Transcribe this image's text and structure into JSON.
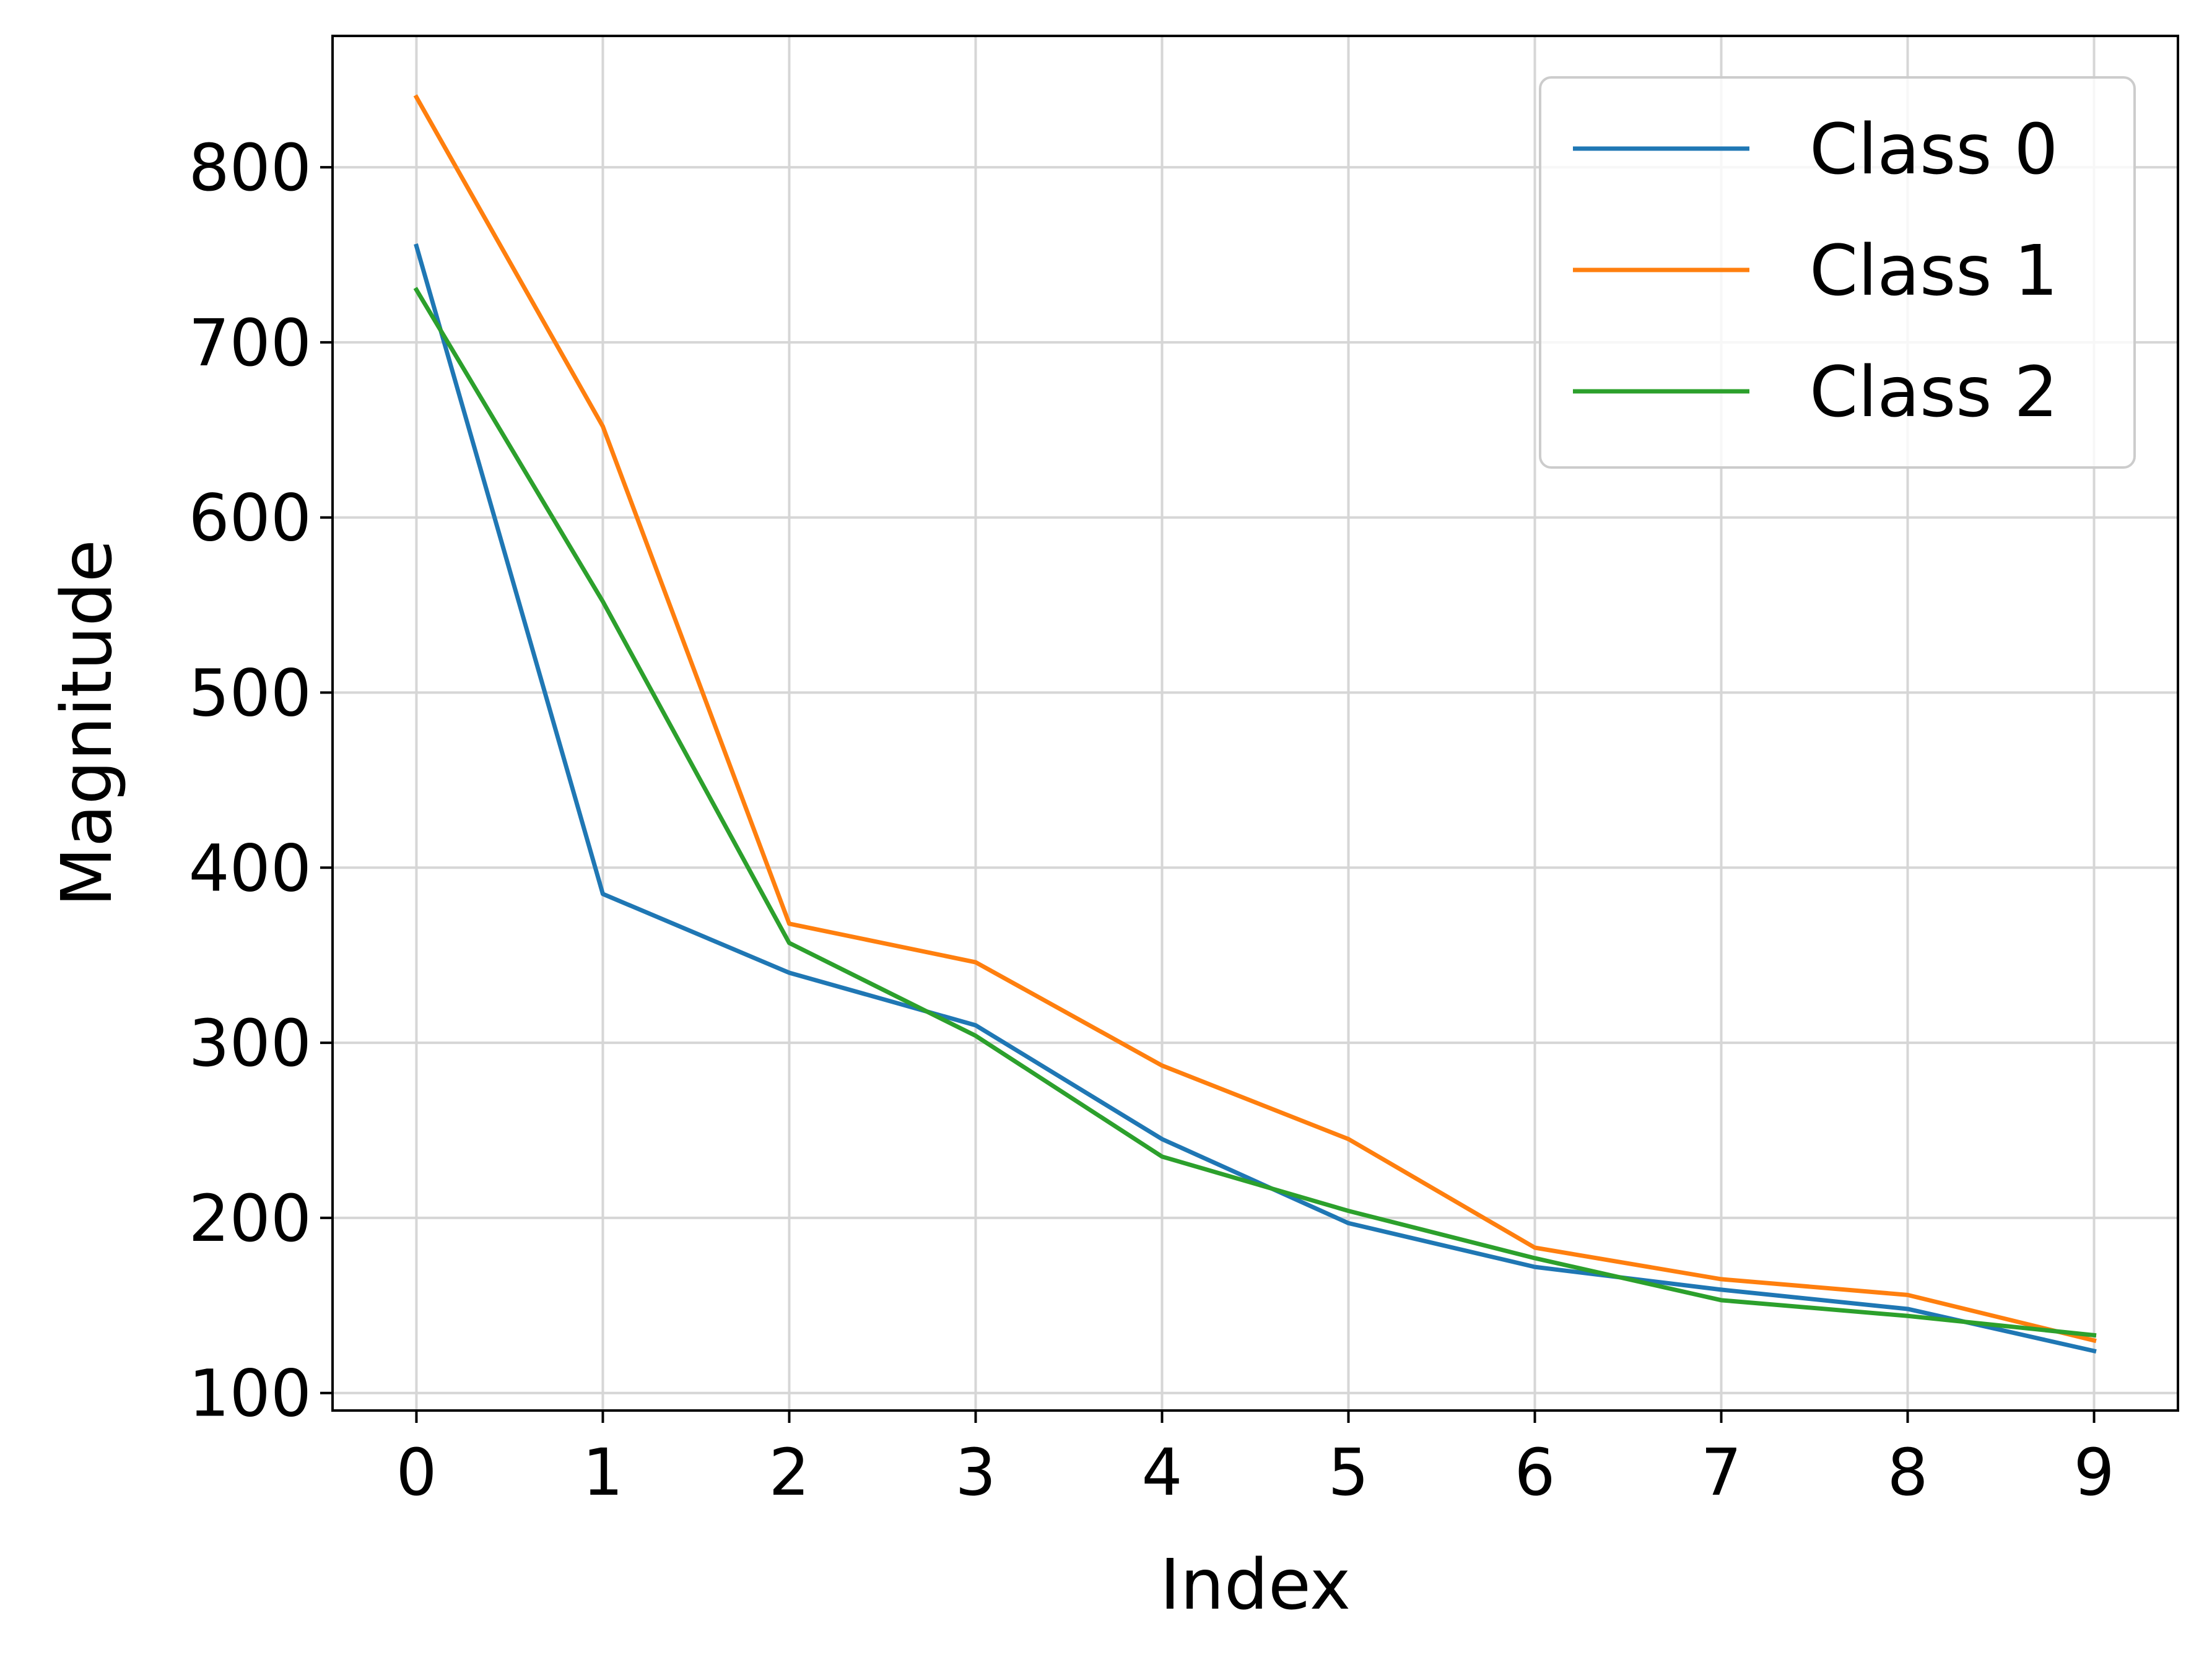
{
  "chart_data": {
    "type": "line",
    "title": "",
    "xlabel": "Index",
    "ylabel": "Magnitude",
    "x": [
      0,
      1,
      2,
      3,
      4,
      5,
      6,
      7,
      8,
      9
    ],
    "xlim": [
      -0.45,
      9.45
    ],
    "ylim": [
      90,
      875
    ],
    "xticks": [
      "0",
      "1",
      "2",
      "3",
      "4",
      "5",
      "6",
      "7",
      "8",
      "9"
    ],
    "yticks": [
      "100",
      "200",
      "300",
      "400",
      "500",
      "600",
      "700",
      "800"
    ],
    "grid": true,
    "legend_position": "top-right",
    "series": [
      {
        "name": "Class 0",
        "color": "#1f77b4",
        "values": [
          755,
          385,
          340,
          310,
          245,
          197,
          172,
          159,
          148,
          124
        ]
      },
      {
        "name": "Class 1",
        "color": "#ff7f0e",
        "values": [
          840,
          652,
          368,
          346,
          287,
          245,
          183,
          165,
          156,
          130
        ]
      },
      {
        "name": "Class 2",
        "color": "#2ca02c",
        "values": [
          730,
          552,
          357,
          304,
          235,
          204,
          177,
          153,
          144,
          133
        ]
      }
    ]
  }
}
